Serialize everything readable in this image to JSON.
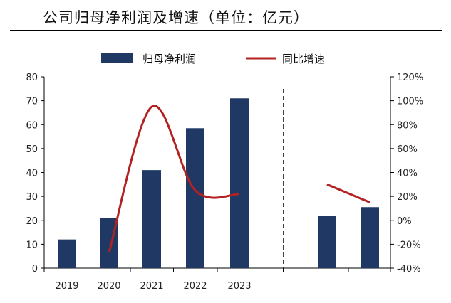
{
  "title": "公司归母净利润及增速（单位：亿元）",
  "chart_data": {
    "type": "bar",
    "categories": [
      "2019",
      "2020",
      "2021",
      "2022",
      "2023",
      "",
      ""
    ],
    "series": [
      {
        "name": "归母净利润",
        "kind": "bar",
        "axis": "left",
        "color": "#1f3864",
        "values": [
          12,
          21,
          41,
          58.5,
          71,
          22,
          25.5
        ]
      },
      {
        "name": "同比增速",
        "kind": "line",
        "axis": "right",
        "color": "#b22222",
        "values": [
          null,
          -27,
          95,
          25,
          22,
          30,
          15
        ]
      }
    ],
    "y_left": {
      "lim": [
        0,
        80
      ],
      "ticks": [
        "0",
        "10",
        "20",
        "30",
        "40",
        "50",
        "60",
        "70",
        "80"
      ]
    },
    "y_right": {
      "lim": [
        -40,
        120
      ],
      "ticks": [
        "-40%",
        "-20%",
        "0%",
        "20%",
        "40%",
        "60%",
        "80%",
        "100%",
        "120%"
      ]
    },
    "divider_after_category": 5,
    "legend_position": "top-center",
    "grid": false
  }
}
